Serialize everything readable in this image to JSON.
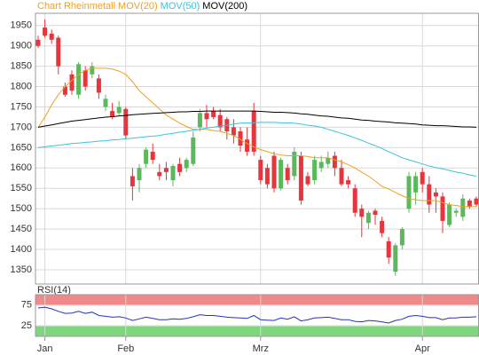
{
  "chart_data": [
    {
      "type": "candlestick",
      "title": "Chart Rheinmetall",
      "title_color": "#f0a020",
      "categories": [
        null,
        "Jan",
        null,
        null,
        null,
        null,
        null,
        null,
        null,
        null,
        null,
        null,
        null,
        "Feb",
        null,
        null,
        null,
        null,
        null,
        null,
        null,
        null,
        null,
        null,
        null,
        null,
        null,
        null,
        null,
        null,
        null,
        null,
        null,
        "Mrz",
        null,
        null,
        null,
        null,
        null,
        null,
        null,
        null,
        null,
        null,
        null,
        null,
        null,
        null,
        null,
        null,
        null,
        null,
        null,
        null,
        null,
        null,
        null,
        "Apr",
        null,
        null,
        null,
        null,
        null,
        null,
        null,
        null
      ],
      "open": [
        1915,
        1945,
        1930,
        1920,
        1800,
        1830,
        1780,
        1840,
        1830,
        1820,
        1750,
        1740,
        1735,
        1745,
        1580,
        1570,
        1610,
        1640,
        1590,
        1600,
        1570,
        1610,
        1600,
        1610,
        1700,
        1735,
        1740,
        1730,
        1720,
        1700,
        1690,
        1670,
        1740,
        1620,
        1600,
        1630,
        1550,
        1600,
        1580,
        1630,
        1580,
        1570,
        1600,
        1610,
        1630,
        1600,
        1570,
        1550,
        1500,
        1465,
        1495,
        1470,
        1420,
        1345,
        1410,
        1500,
        1540,
        1590,
        1560,
        1540,
        1530,
        1460,
        1490,
        1480,
        1520,
        1525
      ],
      "high": [
        1925,
        1965,
        1940,
        1925,
        1810,
        1840,
        1860,
        1850,
        1860,
        1830,
        1780,
        1760,
        1765,
        1750,
        1600,
        1610,
        1650,
        1660,
        1610,
        1615,
        1610,
        1625,
        1625,
        1690,
        1745,
        1755,
        1750,
        1745,
        1725,
        1720,
        1700,
        1700,
        1760,
        1630,
        1610,
        1640,
        1625,
        1610,
        1650,
        1640,
        1590,
        1630,
        1630,
        1640,
        1640,
        1620,
        1580,
        1560,
        1510,
        1495,
        1500,
        1480,
        1430,
        1415,
        1455,
        1590,
        1590,
        1600,
        1580,
        1550,
        1540,
        1515,
        1500,
        1535,
        1525,
        1530
      ],
      "low": [
        1895,
        1920,
        1905,
        1830,
        1775,
        1780,
        1770,
        1790,
        1820,
        1770,
        1740,
        1720,
        1730,
        1670,
        1520,
        1540,
        1600,
        1610,
        1570,
        1570,
        1555,
        1580,
        1590,
        1605,
        1690,
        1700,
        1720,
        1690,
        1670,
        1660,
        1640,
        1630,
        1630,
        1560,
        1550,
        1540,
        1545,
        1560,
        1570,
        1510,
        1555,
        1560,
        1590,
        1600,
        1580,
        1555,
        1550,
        1480,
        1430,
        1450,
        1460,
        1430,
        1365,
        1335,
        1400,
        1490,
        1510,
        1540,
        1490,
        1490,
        1440,
        1455,
        1480,
        1470,
        1500,
        1505
      ],
      "close": [
        1900,
        1925,
        1915,
        1850,
        1780,
        1790,
        1855,
        1800,
        1850,
        1785,
        1770,
        1725,
        1750,
        1680,
        1555,
        1600,
        1645,
        1620,
        1580,
        1590,
        1605,
        1590,
        1620,
        1675,
        1735,
        1720,
        1725,
        1700,
        1690,
        1680,
        1655,
        1640,
        1640,
        1570,
        1560,
        1550,
        1620,
        1570,
        1640,
        1520,
        1560,
        1620,
        1615,
        1625,
        1600,
        1560,
        1560,
        1490,
        1480,
        1490,
        1485,
        1440,
        1380,
        1410,
        1450,
        1580,
        1580,
        1560,
        1510,
        1530,
        1470,
        1510,
        1495,
        1525,
        1505,
        1510
      ],
      "up_color": "#5cb85c",
      "down_color": "#e8343c",
      "series": [
        {
          "name": "MOV(20)",
          "color": "#f0a020",
          "values": [
            1700,
            1725,
            1755,
            1780,
            1800,
            1815,
            1830,
            1840,
            1845,
            1845,
            1845,
            1843,
            1838,
            1830,
            1812,
            1790,
            1775,
            1760,
            1745,
            1730,
            1720,
            1710,
            1702,
            1695,
            1695,
            1695,
            1692,
            1690,
            1685,
            1680,
            1670,
            1660,
            1652,
            1645,
            1640,
            1635,
            1632,
            1630,
            1630,
            1630,
            1628,
            1625,
            1625,
            1625,
            1620,
            1615,
            1608,
            1600,
            1590,
            1580,
            1568,
            1555,
            1548,
            1540,
            1532,
            1525,
            1522,
            1520,
            1520,
            1520,
            1515,
            1510,
            1508,
            1505,
            1505,
            1505
          ]
        },
        {
          "name": "MOV(50)",
          "color": "#38c4dc",
          "values": [
            1650,
            1652,
            1654,
            1656,
            1658,
            1660,
            1661,
            1663,
            1664,
            1666,
            1667,
            1669,
            1670,
            1672,
            1673,
            1675,
            1677,
            1678,
            1680,
            1683,
            1685,
            1688,
            1690,
            1693,
            1695,
            1698,
            1700,
            1703,
            1705,
            1708,
            1710,
            1711,
            1711,
            1712,
            1712,
            1712,
            1711,
            1711,
            1710,
            1708,
            1705,
            1703,
            1700,
            1695,
            1690,
            1685,
            1680,
            1674,
            1668,
            1661,
            1655,
            1648,
            1640,
            1633,
            1625,
            1620,
            1615,
            1610,
            1605,
            1601,
            1598,
            1594,
            1590,
            1587,
            1583,
            1580
          ]
        },
        {
          "name": "MOV(200)",
          "color": "#000000",
          "values": [
            1700,
            1703,
            1706,
            1709,
            1712,
            1715,
            1717,
            1719,
            1721,
            1723,
            1725,
            1726,
            1728,
            1729,
            1731,
            1732,
            1733,
            1734,
            1735,
            1736,
            1737,
            1738,
            1738,
            1739,
            1739,
            1740,
            1740,
            1740,
            1740,
            1740,
            1740,
            1740,
            1740,
            1739,
            1738,
            1737,
            1737,
            1736,
            1735,
            1733,
            1732,
            1730,
            1728,
            1727,
            1725,
            1723,
            1722,
            1720,
            1718,
            1717,
            1715,
            1714,
            1713,
            1711,
            1710,
            1709,
            1708,
            1706,
            1705,
            1704,
            1704,
            1703,
            1702,
            1701,
            1701,
            1700
          ]
        }
      ],
      "ylim": [
        1315,
        1980
      ],
      "yticks": [
        1350,
        1400,
        1450,
        1500,
        1550,
        1600,
        1650,
        1700,
        1750,
        1800,
        1850,
        1900,
        1950
      ],
      "grid": true
    },
    {
      "type": "line",
      "title": "RSI(14)",
      "series": [
        {
          "color": "#2233bb",
          "values": [
            68,
            70,
            66,
            60,
            55,
            56,
            60,
            55,
            58,
            50,
            48,
            46,
            47,
            44,
            38,
            42,
            46,
            43,
            40,
            40,
            42,
            41,
            43,
            47,
            52,
            50,
            50,
            48,
            46,
            45,
            44,
            43,
            50,
            40,
            39,
            38,
            44,
            41,
            47,
            37,
            40,
            44,
            45,
            46,
            43,
            40,
            40,
            36,
            35,
            38,
            37,
            35,
            32,
            38,
            41,
            48,
            50,
            48,
            45,
            45,
            40,
            44,
            44,
            46,
            46,
            47
          ]
        }
      ],
      "bands": [
        {
          "range": [
            75,
            100
          ],
          "color": "#f08a8a"
        },
        {
          "range": [
            0,
            25
          ],
          "color": "#7fd67f"
        }
      ],
      "ylim": [
        0,
        100
      ],
      "yticks": [
        25,
        75
      ],
      "grid": true
    }
  ]
}
